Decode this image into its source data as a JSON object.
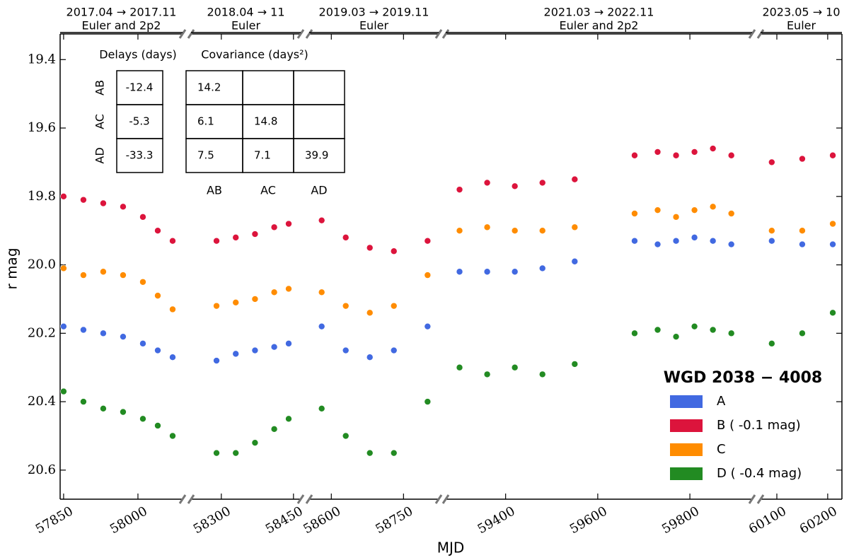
{
  "chart_data": {
    "type": "scatter",
    "x_label": "MJD",
    "y_label": "r mag",
    "ylim": [
      20.685,
      19.325
    ],
    "yticks": [
      19.4,
      19.6,
      19.8,
      {
        "value": 20,
        "label": "20.0"
      },
      20.2,
      20.4,
      20.6
    ],
    "panels": [
      {
        "period": "2017.04 → 2017.11",
        "instrument": "Euler and 2p2",
        "xlim": [
          57843,
          58090
        ],
        "xticks": [
          57850,
          58000
        ]
      },
      {
        "period": "2018.04 → 11",
        "instrument": "Euler",
        "xlim": [
          58237,
          58465
        ],
        "xticks": [
          58300,
          58450
        ]
      },
      {
        "period": "2019.03 → 2019.11",
        "instrument": "Euler",
        "xlim": [
          58554,
          58823
        ],
        "xticks": [
          58600,
          58750
        ]
      },
      {
        "period": "2021.03 → 2022.11",
        "instrument": "Euler and 2p2",
        "xlim": [
          59270,
          59935
        ],
        "xticks": [
          59400,
          59600,
          59800
        ]
      },
      {
        "period": "2023.05 → 10",
        "instrument": "Euler",
        "xlim": [
          60068,
          60228
        ],
        "xticks": [
          60100,
          60200
        ]
      }
    ],
    "x": [
      57850,
      57890,
      57930,
      57970,
      58010,
      58040,
      58070,
      58290,
      58330,
      58370,
      58410,
      58440,
      58580,
      58630,
      58680,
      58730,
      58800,
      59300,
      59360,
      59420,
      59480,
      59550,
      59680,
      59730,
      59770,
      59810,
      59850,
      59890,
      60090,
      60150,
      60210
    ],
    "series": [
      {
        "name": "A",
        "color": "#4169e1",
        "values": [
          20.18,
          20.19,
          20.2,
          20.21,
          20.23,
          20.25,
          20.27,
          20.28,
          20.26,
          20.25,
          20.24,
          20.23,
          20.18,
          20.25,
          20.27,
          20.25,
          20.18,
          20.02,
          20.02,
          20.02,
          20.01,
          19.99,
          19.93,
          19.94,
          19.93,
          19.92,
          19.93,
          19.94,
          19.93,
          19.94,
          19.94
        ]
      },
      {
        "name": "B ( -0.1 mag)",
        "color": "#dc143c",
        "values": [
          19.8,
          19.81,
          19.82,
          19.83,
          19.86,
          19.9,
          19.93,
          19.93,
          19.92,
          19.91,
          19.89,
          19.88,
          19.87,
          19.92,
          19.95,
          19.96,
          19.93,
          19.78,
          19.76,
          19.77,
          19.76,
          19.75,
          19.68,
          19.67,
          19.68,
          19.67,
          19.66,
          19.68,
          19.7,
          19.69,
          19.68
        ]
      },
      {
        "name": "C",
        "color": "#ff8c00",
        "values": [
          20.01,
          20.03,
          20.02,
          20.03,
          20.05,
          20.09,
          20.13,
          20.12,
          20.11,
          20.1,
          20.08,
          20.07,
          20.08,
          20.12,
          20.14,
          20.12,
          20.03,
          19.9,
          19.89,
          19.9,
          19.9,
          19.89,
          19.85,
          19.84,
          19.86,
          19.84,
          19.83,
          19.85,
          19.9,
          19.9,
          19.88
        ]
      },
      {
        "name": "D ( -0.4 mag)",
        "color": "#228b22",
        "values": [
          20.37,
          20.4,
          20.42,
          20.43,
          20.45,
          20.47,
          20.5,
          20.55,
          20.55,
          20.52,
          20.48,
          20.45,
          20.42,
          20.5,
          20.55,
          20.55,
          20.4,
          20.3,
          20.32,
          20.3,
          20.32,
          20.29,
          20.2,
          20.19,
          20.21,
          20.18,
          20.19,
          20.2,
          20.23,
          20.2,
          20.14
        ]
      }
    ],
    "legend": "lower right",
    "legend_title": "WGD 2038 − 4008",
    "delays": {
      "title": "Delays (days)",
      "rows": [
        "AB",
        "AC",
        "AD"
      ],
      "values": [
        -12.4,
        -5.3,
        -33.3
      ]
    },
    "covariance": {
      "title": "Covariance (days²)",
      "columns": [
        "AB",
        "AC",
        "AD"
      ],
      "matrix": [
        [
          14.2,
          null,
          null
        ],
        [
          6.1,
          14.8,
          null
        ],
        [
          7.5,
          7.1,
          39.9
        ]
      ]
    }
  }
}
